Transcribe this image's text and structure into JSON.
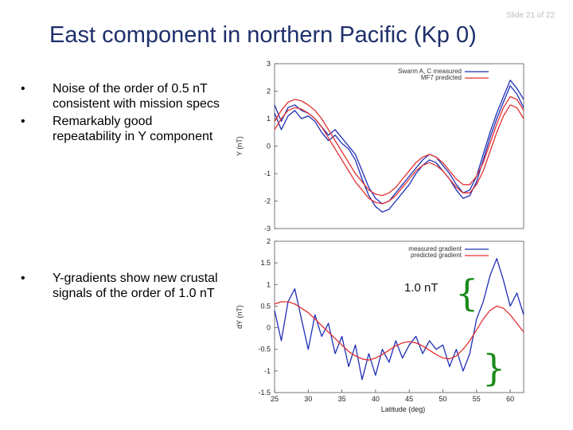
{
  "slide": {
    "number_label": "Slide 21 of 22",
    "title": "East component in northern Pacific (Kp 0)"
  },
  "bullets_top": [
    "Noise of the order of 0.5 nT consistent with mission specs",
    "Remarkably good repeatability in Y component"
  ],
  "bullets_bottom": [
    "Y-gradients show new crustal signals of the order of 1.0 nT"
  ],
  "bullet_symbol": "•",
  "annotation": {
    "text": "1.0 nT",
    "color": "#1a8a1a"
  },
  "chart_data": [
    {
      "type": "line",
      "title": "",
      "ylabel": "Y (nT)",
      "xlabel": "",
      "xlim": [
        25,
        62
      ],
      "ylim": [
        -3,
        3
      ],
      "yticks": [
        "3",
        "2",
        "1",
        "0",
        "-1",
        "-2",
        "-3"
      ],
      "legend": [
        "Swarm A, C measured",
        "MF7 predicted"
      ],
      "legend_position": "top-right",
      "series": [
        {
          "name": "Swarm A, C measured",
          "color": "#1f2fb5",
          "x": [
            25,
            26,
            27,
            28,
            29,
            30,
            31,
            32,
            33,
            34,
            35,
            36,
            37,
            38,
            39,
            40,
            41,
            42,
            43,
            44,
            45,
            46,
            47,
            48,
            49,
            50,
            51,
            52,
            53,
            54,
            55,
            56,
            57,
            58,
            59,
            60,
            61,
            62
          ],
          "y": [
            1.2,
            0.6,
            1.1,
            1.3,
            1.0,
            1.1,
            0.9,
            0.5,
            0.2,
            0.4,
            0.1,
            -0.1,
            -0.5,
            -1.2,
            -1.8,
            -2.2,
            -2.4,
            -2.3,
            -2.0,
            -1.7,
            -1.4,
            -1.0,
            -0.7,
            -0.5,
            -0.6,
            -0.9,
            -1.2,
            -1.6,
            -1.9,
            -1.8,
            -1.3,
            -0.5,
            0.3,
            1.0,
            1.6,
            2.2,
            1.9,
            1.4
          ]
        },
        {
          "name": "Swarm A, C measured",
          "color": "#1f2fb5",
          "x": [
            25,
            26,
            27,
            28,
            29,
            30,
            31,
            32,
            33,
            34,
            35,
            36,
            37,
            38,
            39,
            40,
            41,
            42,
            43,
            44,
            45,
            46,
            47,
            48,
            49,
            50,
            51,
            52,
            53,
            54,
            55,
            56,
            57,
            58,
            59,
            60,
            61,
            62
          ],
          "y": [
            1.5,
            0.9,
            1.4,
            1.5,
            1.3,
            1.2,
            1.0,
            0.7,
            0.4,
            0.6,
            0.3,
            0.0,
            -0.3,
            -0.9,
            -1.5,
            -1.9,
            -2.1,
            -2.0,
            -1.7,
            -1.4,
            -1.1,
            -0.8,
            -0.5,
            -0.3,
            -0.4,
            -0.7,
            -1.0,
            -1.4,
            -1.7,
            -1.6,
            -1.1,
            -0.3,
            0.5,
            1.2,
            1.8,
            2.4,
            2.1,
            1.7
          ]
        },
        {
          "name": "MF7 predicted",
          "color": "#e23030",
          "x": [
            25,
            26,
            27,
            28,
            29,
            30,
            31,
            32,
            33,
            34,
            35,
            36,
            37,
            38,
            39,
            40,
            41,
            42,
            43,
            44,
            45,
            46,
            47,
            48,
            49,
            50,
            51,
            52,
            53,
            54,
            55,
            56,
            57,
            58,
            59,
            60,
            61,
            62
          ],
          "y": [
            0.6,
            1.0,
            1.3,
            1.4,
            1.35,
            1.2,
            1.0,
            0.7,
            0.3,
            -0.1,
            -0.5,
            -0.9,
            -1.3,
            -1.6,
            -1.9,
            -2.05,
            -2.1,
            -2.0,
            -1.8,
            -1.5,
            -1.2,
            -0.9,
            -0.7,
            -0.6,
            -0.7,
            -0.9,
            -1.2,
            -1.5,
            -1.7,
            -1.7,
            -1.4,
            -0.9,
            -0.2,
            0.5,
            1.1,
            1.5,
            1.4,
            1.0
          ]
        },
        {
          "name": "MF7 predicted",
          "color": "#e23030",
          "x": [
            25,
            26,
            27,
            28,
            29,
            30,
            31,
            32,
            33,
            34,
            35,
            36,
            37,
            38,
            39,
            40,
            41,
            42,
            43,
            44,
            45,
            46,
            47,
            48,
            49,
            50,
            51,
            52,
            53,
            54,
            55,
            56,
            57,
            58,
            59,
            60,
            61,
            62
          ],
          "y": [
            0.9,
            1.3,
            1.6,
            1.7,
            1.65,
            1.5,
            1.3,
            1.0,
            0.6,
            0.2,
            -0.2,
            -0.6,
            -1.0,
            -1.3,
            -1.6,
            -1.75,
            -1.8,
            -1.7,
            -1.5,
            -1.2,
            -0.9,
            -0.6,
            -0.4,
            -0.3,
            -0.4,
            -0.6,
            -0.9,
            -1.2,
            -1.4,
            -1.4,
            -1.1,
            -0.6,
            0.1,
            0.8,
            1.4,
            1.8,
            1.7,
            1.3
          ]
        }
      ]
    },
    {
      "type": "line",
      "title": "",
      "ylabel": "dY (nT)",
      "xlabel": "Latitude (deg)",
      "xlim": [
        25,
        62
      ],
      "ylim": [
        -1.5,
        2
      ],
      "xticks": [
        "25",
        "30",
        "35",
        "40",
        "45",
        "50",
        "55",
        "60"
      ],
      "yticks": [
        "2",
        "1.5",
        "1",
        "0.5",
        "0",
        "-0.5",
        "-1",
        "-1.5"
      ],
      "legend": [
        "measured gradient",
        "predicted gradient"
      ],
      "legend_position": "top-right",
      "series": [
        {
          "name": "measured gradient",
          "color": "#1f2fb5",
          "x": [
            25,
            26,
            27,
            28,
            29,
            30,
            31,
            32,
            33,
            34,
            35,
            36,
            37,
            38,
            39,
            40,
            41,
            42,
            43,
            44,
            45,
            46,
            47,
            48,
            49,
            50,
            51,
            52,
            53,
            54,
            55,
            56,
            57,
            58,
            59,
            60,
            61,
            62
          ],
          "y": [
            0.4,
            -0.3,
            0.6,
            0.9,
            0.2,
            -0.5,
            0.3,
            -0.2,
            0.1,
            -0.6,
            -0.2,
            -0.9,
            -0.4,
            -1.2,
            -0.6,
            -1.1,
            -0.5,
            -0.8,
            -0.3,
            -0.7,
            -0.4,
            -0.2,
            -0.6,
            -0.3,
            -0.5,
            -0.4,
            -0.9,
            -0.5,
            -1.0,
            -0.6,
            0.2,
            0.6,
            1.2,
            1.6,
            1.1,
            0.5,
            0.8,
            0.3
          ]
        },
        {
          "name": "predicted gradient",
          "color": "#e23030",
          "x": [
            25,
            26,
            27,
            28,
            29,
            30,
            31,
            32,
            33,
            34,
            35,
            36,
            37,
            38,
            39,
            40,
            41,
            42,
            43,
            44,
            45,
            46,
            47,
            48,
            49,
            50,
            51,
            52,
            53,
            54,
            55,
            56,
            57,
            58,
            59,
            60,
            61,
            62
          ],
          "y": [
            0.55,
            0.6,
            0.6,
            0.55,
            0.45,
            0.35,
            0.2,
            0.05,
            -0.1,
            -0.25,
            -0.4,
            -0.55,
            -0.65,
            -0.72,
            -0.75,
            -0.7,
            -0.62,
            -0.52,
            -0.42,
            -0.35,
            -0.32,
            -0.35,
            -0.42,
            -0.52,
            -0.62,
            -0.7,
            -0.72,
            -0.65,
            -0.5,
            -0.3,
            -0.05,
            0.2,
            0.4,
            0.5,
            0.45,
            0.3,
            0.1,
            -0.1
          ]
        }
      ]
    }
  ]
}
